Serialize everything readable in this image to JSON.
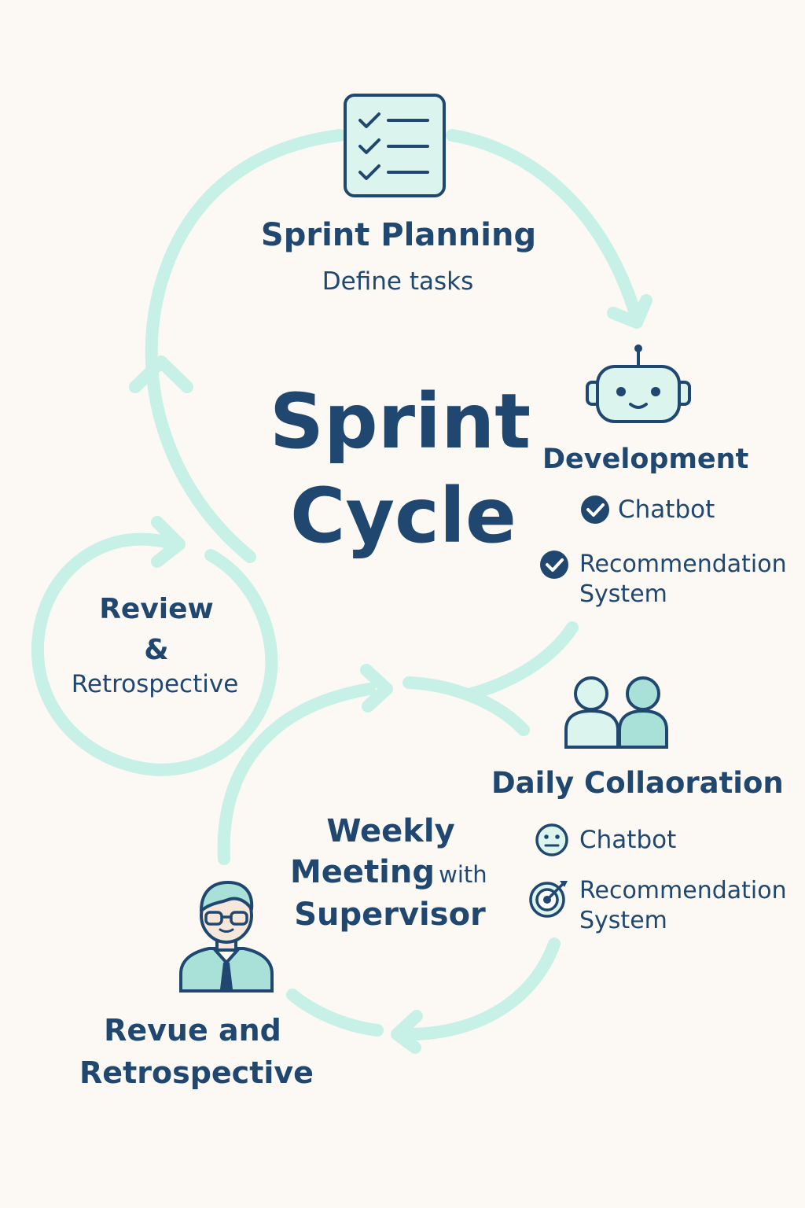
{
  "diagram": {
    "center_title": [
      "Sprint",
      "Cycle"
    ],
    "sprint_planning": {
      "title": "Sprint Planning",
      "subtitle": "Define tasks"
    },
    "development": {
      "title": "Development",
      "items": [
        {
          "label": "Chatbot",
          "icon": "check-circle-icon"
        },
        {
          "label_lines": [
            "Recommendation",
            "System"
          ],
          "icon": "check-circle-icon"
        }
      ]
    },
    "review": {
      "lines": [
        "Review",
        "&",
        "Retrospective"
      ]
    },
    "daily": {
      "title": "Daily Collaoration",
      "items": [
        {
          "label": "Chatbot",
          "icon": "neutral-face-icon"
        },
        {
          "label_lines": [
            "Recommendation",
            "System"
          ],
          "icon": "target-icon"
        }
      ]
    },
    "weekly": {
      "line1": "Weekly",
      "line2_main": "Meeting",
      "line2_small": "with",
      "line3": "Supervisor"
    },
    "revue": {
      "lines": [
        "Revue and",
        "Retrospective"
      ]
    }
  },
  "colors": {
    "background": "#fcf9f5",
    "text": "#1f4770",
    "arrows": "#c7f0e6",
    "icon_fill": "#dcf4ee",
    "icon_fill_dark": "#a9e0d8",
    "icon_stroke": "#1f4770"
  }
}
